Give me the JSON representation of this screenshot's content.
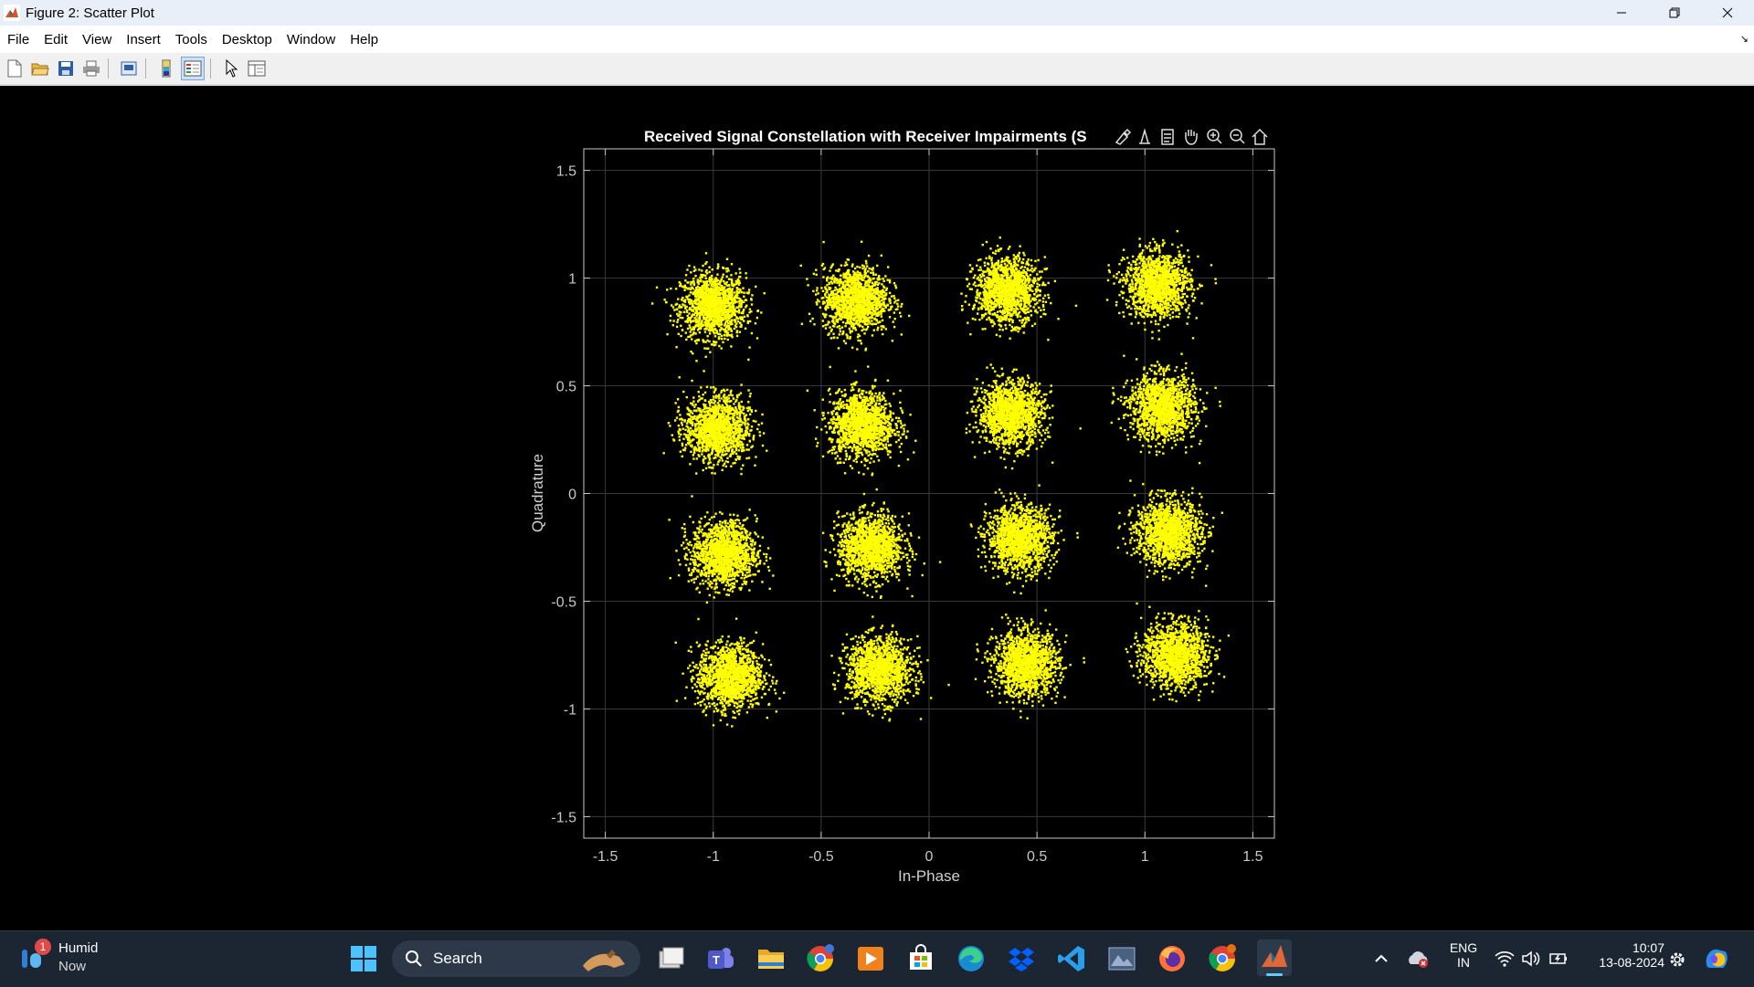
{
  "window": {
    "title": "Figure 2: Scatter Plot",
    "controls": [
      "minimize-icon",
      "restore-icon",
      "close-icon"
    ]
  },
  "menu": [
    "File",
    "Edit",
    "View",
    "Insert",
    "Tools",
    "Desktop",
    "Window",
    "Help"
  ],
  "toolbar": {
    "icons": [
      "new-figure-icon",
      "open-file-icon",
      "save-icon",
      "print-icon",
      "print-preview-icon",
      "colorbar-icon",
      "legend-icon",
      "pointer-icon",
      "property-inspector-icon"
    ]
  },
  "axes_toolbar": {
    "icons": [
      "brush-icon",
      "data-tips-icon",
      "pan-icon",
      "zoom-in-icon",
      "zoom-out-icon",
      "restore-view-icon",
      "export-icon",
      "link-icon"
    ]
  },
  "chart_data": {
    "type": "scatter",
    "title": "Received Signal Constellation with Receiver Impairments (S",
    "xlabel": "In-Phase",
    "ylabel": "Quadrature",
    "xlim": [
      -1.6,
      1.6
    ],
    "ylim": [
      -1.6,
      1.6
    ],
    "xticks": [
      "-1.5",
      "-1",
      "-0.5",
      "0",
      "0.5",
      "1",
      "1.5"
    ],
    "yticks": [
      "1.5",
      "1",
      "0.5",
      "0",
      "-0.5",
      "-1",
      "-1.5"
    ],
    "grid": true,
    "marker_color": "#ffff00",
    "background": "#000000",
    "axis_color": "#c8c8c8",
    "cluster_spread": 0.075,
    "points_per_cluster": 1400,
    "cluster_centers": [
      [
        -1.0,
        0.87
      ],
      [
        -0.34,
        0.9
      ],
      [
        0.36,
        0.94
      ],
      [
        1.06,
        0.97
      ],
      [
        -0.98,
        0.3
      ],
      [
        -0.31,
        0.32
      ],
      [
        0.38,
        0.37
      ],
      [
        1.08,
        0.4
      ],
      [
        -0.95,
        -0.28
      ],
      [
        -0.27,
        -0.25
      ],
      [
        0.42,
        -0.21
      ],
      [
        1.11,
        -0.18
      ],
      [
        -0.92,
        -0.85
      ],
      [
        -0.23,
        -0.82
      ],
      [
        0.45,
        -0.79
      ],
      [
        1.14,
        -0.75
      ]
    ]
  },
  "taskbar": {
    "weather_title": "Humid",
    "weather_sub": "Now",
    "weather_badge": "1",
    "search_placeholder": "Search",
    "apps": [
      "windows-start-icon",
      "task-view-icon",
      "teams-icon",
      "file-explorer-icon",
      "chrome-icon",
      "media-player-icon",
      "store-icon",
      "edge-icon",
      "dropbox-icon",
      "vscode-icon",
      "photos-icon",
      "firefox-icon",
      "chrome-profile-icon",
      "matlab-icon"
    ],
    "lang_top": "ENG",
    "lang_bottom": "IN",
    "time": "10:07",
    "date": "13-08-2024"
  }
}
